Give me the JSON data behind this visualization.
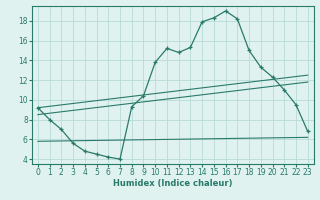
{
  "xlabel": "Humidex (Indice chaleur)",
  "bg_color": "#dff2f0",
  "line_color": "#2a7a6a",
  "grid_color": "#b8dbd8",
  "xlim": [
    -0.5,
    23.5
  ],
  "ylim": [
    3.5,
    19.5
  ],
  "yticks": [
    4,
    6,
    8,
    10,
    12,
    14,
    16,
    18
  ],
  "xticks": [
    0,
    1,
    2,
    3,
    4,
    5,
    6,
    7,
    8,
    9,
    10,
    11,
    12,
    13,
    14,
    15,
    16,
    17,
    18,
    19,
    20,
    21,
    22,
    23
  ],
  "line1_x": [
    0,
    1,
    2,
    3,
    4,
    5,
    6,
    7,
    8,
    9,
    10,
    11,
    12,
    13,
    14,
    15,
    16,
    17,
    18,
    19,
    20,
    21,
    22,
    23
  ],
  "line1_y": [
    9.2,
    8.0,
    7.0,
    5.6,
    4.8,
    4.5,
    4.2,
    4.0,
    9.3,
    10.4,
    13.8,
    15.2,
    14.8,
    15.3,
    17.9,
    18.3,
    19.0,
    18.2,
    15.0,
    13.3,
    12.3,
    11.0,
    9.5,
    6.8
  ],
  "line2_x": [
    0,
    23
  ],
  "line2_y": [
    8.5,
    11.8
  ],
  "line3_x": [
    0,
    23
  ],
  "line3_y": [
    9.2,
    12.5
  ],
  "line4_x": [
    0,
    23
  ],
  "line4_y": [
    5.8,
    6.2
  ],
  "tick_fontsize": 5.5,
  "xlabel_fontsize": 6.0
}
